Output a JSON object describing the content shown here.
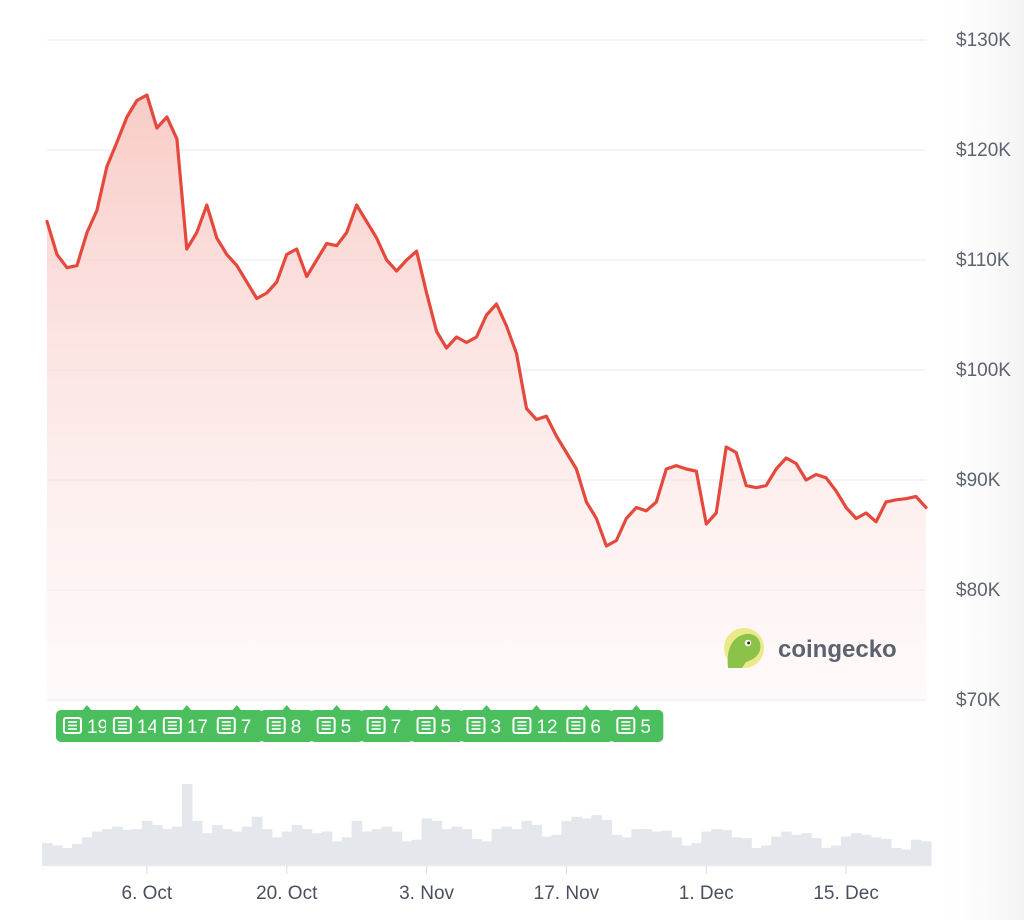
{
  "chart_data": {
    "type": "area",
    "title": "",
    "xlabel": "",
    "ylabel": "",
    "y_ticks": [
      "$130K",
      "$120K",
      "$110K",
      "$100K",
      "$90K",
      "$80K",
      "$70K"
    ],
    "ylim": [
      70000,
      130000
    ],
    "x_ticks": [
      "6. Oct",
      "20. Oct",
      "3. Nov",
      "17. Nov",
      "1. Dec",
      "15. Dec"
    ],
    "xlim": [
      "2025-09-26",
      "2025-12-23"
    ],
    "grid": true,
    "series": [
      {
        "color": "#e5483c",
        "x": [
          "2025-09-26",
          "2025-09-27",
          "2025-09-28",
          "2025-09-29",
          "2025-09-30",
          "2025-10-01",
          "2025-10-02",
          "2025-10-03",
          "2025-10-04",
          "2025-10-05",
          "2025-10-06",
          "2025-10-07",
          "2025-10-08",
          "2025-10-09",
          "2025-10-10",
          "2025-10-11",
          "2025-10-12",
          "2025-10-13",
          "2025-10-14",
          "2025-10-15",
          "2025-10-16",
          "2025-10-17",
          "2025-10-18",
          "2025-10-19",
          "2025-10-20",
          "2025-10-21",
          "2025-10-22",
          "2025-10-23",
          "2025-10-24",
          "2025-10-25",
          "2025-10-26",
          "2025-10-27",
          "2025-10-28",
          "2025-10-29",
          "2025-10-30",
          "2025-10-31",
          "2025-11-01",
          "2025-11-02",
          "2025-11-03",
          "2025-11-04",
          "2025-11-05",
          "2025-11-06",
          "2025-11-07",
          "2025-11-08",
          "2025-11-09",
          "2025-11-10",
          "2025-11-11",
          "2025-11-12",
          "2025-11-13",
          "2025-11-14",
          "2025-11-15",
          "2025-11-16",
          "2025-11-17",
          "2025-11-18",
          "2025-11-19",
          "2025-11-20",
          "2025-11-21",
          "2025-11-22",
          "2025-11-23",
          "2025-11-24",
          "2025-11-25",
          "2025-11-26",
          "2025-11-27",
          "2025-11-28",
          "2025-11-29",
          "2025-11-30",
          "2025-12-01",
          "2025-12-02",
          "2025-12-03",
          "2025-12-04",
          "2025-12-05",
          "2025-12-06",
          "2025-12-07",
          "2025-12-08",
          "2025-12-09",
          "2025-12-10",
          "2025-12-11",
          "2025-12-12",
          "2025-12-13",
          "2025-12-14",
          "2025-12-15",
          "2025-12-16",
          "2025-12-17",
          "2025-12-18",
          "2025-12-19",
          "2025-12-20",
          "2025-12-21",
          "2025-12-22",
          "2025-12-23"
        ],
        "values": [
          113500,
          110500,
          109300,
          109500,
          112500,
          114500,
          118500,
          120700,
          123000,
          124500,
          125000,
          122000,
          123000,
          121000,
          111000,
          112500,
          115000,
          112000,
          110500,
          109500,
          108000,
          106500,
          107000,
          108000,
          110500,
          111000,
          108500,
          110000,
          111500,
          111300,
          112500,
          115000,
          113500,
          112000,
          110000,
          109000,
          110000,
          110800,
          107000,
          103500,
          102000,
          103000,
          102500,
          103000,
          105000,
          106000,
          104000,
          101500,
          96500,
          95500,
          95800,
          94000,
          92500,
          91000,
          88000,
          86500,
          84000,
          84500,
          86500,
          87500,
          87200,
          88000,
          91000,
          91300,
          91000,
          90800,
          86000,
          87000,
          93000,
          92500,
          89500,
          89300,
          89500,
          91000,
          92000,
          91500,
          90000,
          90500,
          90200,
          89000,
          87500,
          86500,
          87000,
          86200,
          88000,
          88200,
          88300,
          88500,
          87500
        ]
      }
    ],
    "volume": {
      "values": [
        0.28,
        0.25,
        0.22,
        0.27,
        0.35,
        0.42,
        0.45,
        0.48,
        0.44,
        0.45,
        0.55,
        0.5,
        0.45,
        0.48,
        1.0,
        0.55,
        0.4,
        0.5,
        0.45,
        0.42,
        0.48,
        0.6,
        0.45,
        0.35,
        0.42,
        0.5,
        0.45,
        0.4,
        0.42,
        0.3,
        0.35,
        0.55,
        0.42,
        0.45,
        0.48,
        0.42,
        0.3,
        0.32,
        0.58,
        0.55,
        0.45,
        0.48,
        0.45,
        0.33,
        0.3,
        0.45,
        0.48,
        0.45,
        0.55,
        0.5,
        0.36,
        0.38,
        0.55,
        0.6,
        0.58,
        0.62,
        0.56,
        0.38,
        0.35,
        0.45,
        0.45,
        0.42,
        0.43,
        0.35,
        0.25,
        0.28,
        0.42,
        0.45,
        0.44,
        0.35,
        0.34,
        0.22,
        0.25,
        0.36,
        0.42,
        0.38,
        0.4,
        0.34,
        0.22,
        0.25,
        0.36,
        0.4,
        0.38,
        0.35,
        0.33,
        0.22,
        0.2,
        0.32,
        0.3
      ]
    },
    "news_markers": [
      {
        "date": "2025-09-30",
        "count": "19"
      },
      {
        "date": "2025-10-05",
        "count": "14"
      },
      {
        "date": "2025-10-10",
        "count": "17"
      },
      {
        "date": "2025-10-15",
        "count": "7"
      },
      {
        "date": "2025-10-20",
        "count": "8"
      },
      {
        "date": "2025-10-25",
        "count": "5"
      },
      {
        "date": "2025-10-30",
        "count": "7"
      },
      {
        "date": "2025-11-04",
        "count": "5"
      },
      {
        "date": "2025-11-09",
        "count": "3"
      },
      {
        "date": "2025-11-14",
        "count": "12"
      },
      {
        "date": "2025-11-19",
        "count": "6"
      },
      {
        "date": "2025-11-24",
        "count": "5"
      }
    ]
  },
  "watermark": {
    "text": "coingecko",
    "icon": "gecko-logo-icon"
  },
  "colors": {
    "line": "#e5483c",
    "area_top": "#f8c9c4",
    "news_badge": "#4bbf5e",
    "grid": "#e9edf2",
    "volume": "#e4e7ec",
    "gecko_circle": "#ece98a",
    "gecko_head": "#8bc34a"
  }
}
